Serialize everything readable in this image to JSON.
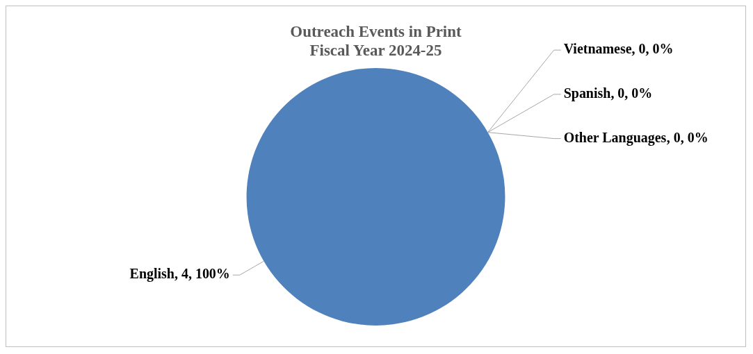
{
  "chart_data": {
    "type": "pie",
    "title": "Outreach Events in Print",
    "subtitle": "Fiscal Year 2024-25",
    "categories": [
      "English",
      "Vietnamese",
      "Spanish",
      "Other Languages"
    ],
    "values": [
      4,
      0,
      0,
      0
    ],
    "colors": [
      "#4f81bd",
      "#c0504d",
      "#9bbb59",
      "#8064a2"
    ],
    "value_labels": [
      ", 4, 100%",
      ", 0, 0%",
      ", 0, 0%",
      ", 0, 0%"
    ]
  }
}
